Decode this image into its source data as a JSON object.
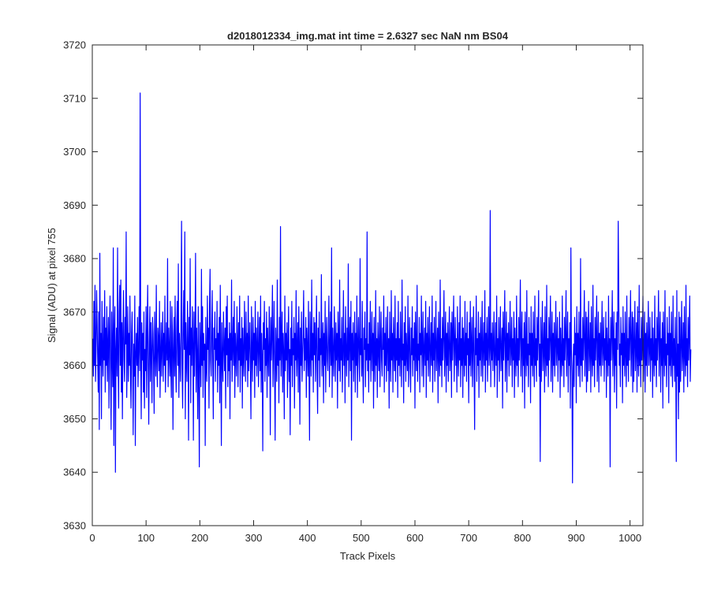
{
  "chart_data": {
    "type": "line",
    "title": "d2018012334_img.mat int time = 2.6327 sec  NaN nm BS04",
    "xlabel": "Track Pixels",
    "ylabel": "Signal (ADU) at pixel 755",
    "xlim": [
      0,
      1024
    ],
    "ylim": [
      3630,
      3720
    ],
    "xticks": [
      0,
      100,
      200,
      300,
      400,
      500,
      600,
      700,
      800,
      900,
      1000
    ],
    "yticks": [
      3630,
      3640,
      3650,
      3660,
      3670,
      3680,
      3690,
      3700,
      3710,
      3720
    ],
    "grid": false,
    "legend": "none",
    "series": [
      {
        "color": "#0000ff",
        "x_start": 1,
        "x_step": 1,
        "values": [
          3665,
          3658,
          3672,
          3660,
          3675,
          3657,
          3663,
          3674,
          3668,
          3661,
          3655,
          3670,
          3648,
          3681,
          3660,
          3666,
          3650,
          3672,
          3663,
          3658,
          3669,
          3661,
          3674,
          3655,
          3667,
          3660,
          3671,
          3657,
          3664,
          3669,
          3652,
          3666,
          3673,
          3659,
          3648,
          3670,
          3662,
          3656,
          3682,
          3645,
          3666,
          3671,
          3640,
          3663,
          3667,
          3658,
          3682,
          3661,
          3652,
          3670,
          3675,
          3660,
          3676,
          3655,
          3668,
          3650,
          3666,
          3674,
          3661,
          3657,
          3669,
          3664,
          3685,
          3654,
          3662,
          3671,
          3657,
          3666,
          3660,
          3673,
          3658,
          3652,
          3666,
          3670,
          3661,
          3647,
          3664,
          3658,
          3673,
          3645,
          3662,
          3666,
          3660,
          3669,
          3656,
          3663,
          3671,
          3659,
          3711,
          3663,
          3650,
          3668,
          3661,
          3666,
          3655,
          3670,
          3652,
          3663,
          3659,
          3671,
          3654,
          3666,
          3675,
          3660,
          3649,
          3664,
          3671,
          3657,
          3668,
          3662,
          3653,
          3669,
          3666,
          3660,
          3651,
          3670,
          3663,
          3658,
          3675,
          3661,
          3656,
          3667,
          3665,
          3659,
          3672,
          3654,
          3662,
          3668,
          3658,
          3664,
          3670,
          3657,
          3666,
          3660,
          3673,
          3655,
          3662,
          3668,
          3661,
          3680,
          3656,
          3667,
          3663,
          3658,
          3672,
          3660,
          3654,
          3671,
          3666,
          3648,
          3663,
          3669,
          3658,
          3673,
          3661,
          3655,
          3667,
          3672,
          3660,
          3679,
          3654,
          3666,
          3662,
          3657,
          3670,
          3687,
          3660,
          3652,
          3666,
          3674,
          3663,
          3685,
          3650,
          3668,
          3661,
          3657,
          3672,
          3665,
          3646,
          3669,
          3662,
          3680,
          3653,
          3667,
          3660,
          3671,
          3664,
          3646,
          3670,
          3658,
          3665,
          3681,
          3655,
          3667,
          3662,
          3650,
          3671,
          3659,
          3641,
          3668,
          3663,
          3656,
          3678,
          3660,
          3671,
          3654,
          3666,
          3661,
          3664,
          3645,
          3669,
          3660,
          3657,
          3673,
          3663,
          3667,
          3652,
          3671,
          3678,
          3661,
          3658,
          3666,
          3674,
          3660,
          3650,
          3667,
          3663,
          3670,
          3657,
          3665,
          3661,
          3672,
          3655,
          3666,
          3660,
          3669,
          3653,
          3675,
          3662,
          3645,
          3668,
          3661,
          3657,
          3670,
          3664,
          3659,
          3667,
          3652,
          3671,
          3662,
          3673,
          3656,
          3665,
          3659,
          3668,
          3650,
          3666,
          3661,
          3676,
          3657,
          3663,
          3669,
          3660,
          3672,
          3654,
          3666,
          3662,
          3658,
          3671,
          3664,
          3656,
          3668,
          3661,
          3673,
          3655,
          3665,
          3660,
          3669,
          3652,
          3667,
          3662,
          3658,
          3672,
          3664,
          3657,
          3670,
          3661,
          3666,
          3656,
          3673,
          3659,
          3664,
          3668,
          3660,
          3650,
          3671,
          3663,
          3657,
          3669,
          3661,
          3666,
          3654,
          3672,
          3660,
          3667,
          3658,
          3664,
          3670,
          3656,
          3663,
          3669,
          3659,
          3673,
          3655,
          3666,
          3661,
          3644,
          3668,
          3663,
          3672,
          3657,
          3665,
          3660,
          3670,
          3654,
          3667,
          3662,
          3658,
          3671,
          3664,
          3647,
          3669,
          3661,
          3666,
          3675,
          3656,
          3663,
          3672,
          3659,
          3646,
          3667,
          3662,
          3657,
          3676,
          3660,
          3665,
          3653,
          3669,
          3661,
          3686,
          3658,
          3664,
          3670,
          3655,
          3666,
          3662,
          3650,
          3673,
          3659,
          3666,
          3661,
          3668,
          3654,
          3664,
          3671,
          3657,
          3663,
          3647,
          3667,
          3660,
          3672,
          3656,
          3665,
          3662,
          3669,
          3652,
          3666,
          3661,
          3674,
          3658,
          3663,
          3668,
          3655,
          3671,
          3664,
          3649,
          3667,
          3660,
          3670,
          3657,
          3662,
          3666,
          3674,
          3659,
          3665,
          3661,
          3669,
          3654,
          3667,
          3663,
          3658,
          3672,
          3660,
          3646,
          3670,
          3664,
          3658,
          3676,
          3661,
          3666,
          3655,
          3669,
          3662,
          3668,
          3657,
          3664,
          3673,
          3659,
          3651,
          3667,
          3661,
          3670,
          3656,
          3665,
          3662,
          3677,
          3658,
          3663,
          3668,
          3653,
          3666,
          3660,
          3672,
          3655,
          3664,
          3669,
          3661,
          3659,
          3666,
          3673,
          3656,
          3663,
          3670,
          3660,
          3682,
          3654,
          3667,
          3662,
          3658,
          3671,
          3664,
          3657,
          3668,
          3661,
          3666,
          3652,
          3670,
          3663,
          3659,
          3676,
          3657,
          3665,
          3661,
          3669,
          3655,
          3662,
          3674,
          3660,
          3666,
          3653,
          3671,
          3663,
          3658,
          3667,
          3661,
          3679,
          3656,
          3664,
          3669,
          3659,
          3672,
          3646,
          3666,
          3661,
          3668,
          3657,
          3663,
          3670,
          3655,
          3666,
          3660,
          3673,
          3654,
          3664,
          3669,
          3661,
          3657,
          3680,
          3662,
          3665,
          3658,
          3672,
          3660,
          3653,
          3667,
          3663,
          3670,
          3656,
          3665,
          3661,
          3685,
          3659,
          3664,
          3655,
          3668,
          3661,
          3672,
          3657,
          3663,
          3670,
          3659,
          3666,
          3652,
          3669,
          3662,
          3657,
          3674,
          3660,
          3665,
          3654,
          3668,
          3663,
          3659,
          3671,
          3656,
          3664,
          3670,
          3661,
          3658,
          3667,
          3663,
          3673,
          3655,
          3666,
          3660,
          3669,
          3657,
          3663,
          3671,
          3659,
          3665,
          3652,
          3670,
          3662,
          3657,
          3674,
          3661,
          3666,
          3655,
          3669,
          3663,
          3659,
          3673,
          3657,
          3665,
          3661,
          3668,
          3654,
          3672,
          3660,
          3665,
          3658,
          3670,
          3662,
          3656,
          3676,
          3661,
          3664,
          3653,
          3668,
          3660,
          3671,
          3657,
          3666,
          3662,
          3659,
          3673,
          3656,
          3664,
          3669,
          3660,
          3655,
          3667,
          3662,
          3671,
          3658,
          3665,
          3661,
          3668,
          3652,
          3670,
          3663,
          3659,
          3675,
          3657,
          3664,
          3661,
          3669,
          3655,
          3666,
          3662,
          3673,
          3658,
          3664,
          3670,
          3656,
          3663,
          3667,
          3660,
          3672,
          3654,
          3666,
          3661,
          3669,
          3658,
          3664,
          3671,
          3657,
          3662,
          3668,
          3660,
          3673,
          3655,
          3666,
          3661,
          3669,
          3657,
          3664,
          3672,
          3659,
          3663,
          3667,
          3653,
          3670,
          3662,
          3658,
          3676,
          3660,
          3665,
          3656,
          3669,
          3661,
          3666,
          3674,
          3658,
          3663,
          3670,
          3655,
          3666,
          3660,
          3668,
          3657,
          3664,
          3671,
          3659,
          3662,
          3668,
          3654,
          3670,
          3661,
          3666,
          3673,
          3657,
          3664,
          3669,
          3660,
          3665,
          3655,
          3671,
          3662,
          3658,
          3668,
          3661,
          3673,
          3656,
          3665,
          3660,
          3669,
          3654,
          3667,
          3663,
          3658,
          3672,
          3660,
          3666,
          3657,
          3670,
          3662,
          3665,
          3653,
          3668,
          3660,
          3672,
          3658,
          3664,
          3669,
          3656,
          3663,
          3671,
          3660,
          3648,
          3667,
          3662,
          3673,
          3657,
          3665,
          3660,
          3670,
          3654,
          3666,
          3661,
          3669,
          3658,
          3664,
          3672,
          3657,
          3663,
          3668,
          3660,
          3674,
          3655,
          3666,
          3661,
          3669,
          3657,
          3664,
          3671,
          3660,
          3663,
          3689,
          3656,
          3666,
          3661,
          3668,
          3659,
          3664,
          3670,
          3656,
          3662,
          3668,
          3660,
          3673,
          3654,
          3665,
          3661,
          3669,
          3657,
          3664,
          3671,
          3659,
          3663,
          3667,
          3652,
          3670,
          3661,
          3666,
          3674,
          3657,
          3663,
          3670,
          3655,
          3666,
          3661,
          3668,
          3658,
          3664,
          3672,
          3660,
          3663,
          3669,
          3656,
          3665,
          3661,
          3670,
          3654,
          3667,
          3662,
          3658,
          3673,
          3660,
          3665,
          3656,
          3669,
          3661,
          3666,
          3676,
          3658,
          3664,
          3670,
          3655,
          3665,
          3660,
          3668,
          3652,
          3670,
          3663,
          3658,
          3674,
          3660,
          3664,
          3656,
          3669,
          3662,
          3666,
          3653,
          3671,
          3660,
          3666,
          3658,
          3670,
          3662,
          3656,
          3673,
          3660,
          3665,
          3657,
          3669,
          3661,
          3666,
          3674,
          3658,
          3664,
          3642,
          3669,
          3657,
          3664,
          3672,
          3659,
          3663,
          3668,
          3655,
          3671,
          3662,
          3658,
          3675,
          3660,
          3665,
          3656,
          3669,
          3661,
          3666,
          3673,
          3657,
          3663,
          3670,
          3655,
          3666,
          3660,
          3668,
          3658,
          3664,
          3672,
          3660,
          3663,
          3669,
          3657,
          3665,
          3661,
          3670,
          3654,
          3667,
          3662,
          3658,
          3673,
          3660,
          3665,
          3656,
          3669,
          3661,
          3666,
          3674,
          3658,
          3664,
          3670,
          3655,
          3665,
          3660,
          3668,
          3652,
          3682,
          3663,
          3658,
          3638,
          3660,
          3664,
          3656,
          3669,
          3662,
          3666,
          3653,
          3671,
          3660,
          3666,
          3658,
          3670,
          3662,
          3656,
          3680,
          3660,
          3665,
          3657,
          3669,
          3661,
          3666,
          3674,
          3658,
          3664,
          3670,
          3655,
          3669,
          3657,
          3664,
          3672,
          3659,
          3663,
          3668,
          3655,
          3671,
          3662,
          3658,
          3675,
          3660,
          3665,
          3656,
          3669,
          3661,
          3666,
          3673,
          3657,
          3663,
          3670,
          3655,
          3666,
          3660,
          3668,
          3658,
          3664,
          3672,
          3660,
          3663,
          3669,
          3657,
          3665,
          3661,
          3670,
          3654,
          3667,
          3662,
          3658,
          3673,
          3660,
          3665,
          3641,
          3669,
          3661,
          3666,
          3674,
          3658,
          3664,
          3670,
          3655,
          3665,
          3660,
          3668,
          3652,
          3670,
          3663,
          3687,
          3674,
          3660,
          3664,
          3656,
          3669,
          3662,
          3666,
          3653,
          3671,
          3660,
          3666,
          3658,
          3670,
          3662,
          3656,
          3673,
          3660,
          3665,
          3657,
          3669,
          3661,
          3666,
          3674,
          3658,
          3664,
          3670,
          3655,
          3669,
          3657,
          3664,
          3672,
          3659,
          3663,
          3668,
          3655,
          3671,
          3662,
          3658,
          3675,
          3660,
          3665,
          3656,
          3669,
          3661,
          3666,
          3673,
          3657,
          3663,
          3670,
          3655,
          3666,
          3660,
          3668,
          3658,
          3664,
          3672,
          3660,
          3663,
          3669,
          3657,
          3665,
          3661,
          3670,
          3654,
          3667,
          3662,
          3658,
          3673,
          3660,
          3665,
          3656,
          3669,
          3661,
          3666,
          3674,
          3658,
          3664,
          3670,
          3655,
          3665,
          3660,
          3668,
          3652,
          3670,
          3663,
          3658,
          3674,
          3660,
          3664,
          3656,
          3669,
          3662,
          3666,
          3653,
          3671,
          3660,
          3666,
          3658,
          3670,
          3662,
          3656,
          3673,
          3660,
          3665,
          3657,
          3669,
          3661,
          3642,
          3674,
          3658,
          3664,
          3650,
          3670,
          3655,
          3669,
          3657,
          3664,
          3672,
          3659,
          3663,
          3668,
          3655,
          3671,
          3662,
          3658,
          3675,
          3660,
          3665,
          3656,
          3669,
          3661,
          3666,
          3673,
          3657,
          3663
        ]
      }
    ]
  }
}
